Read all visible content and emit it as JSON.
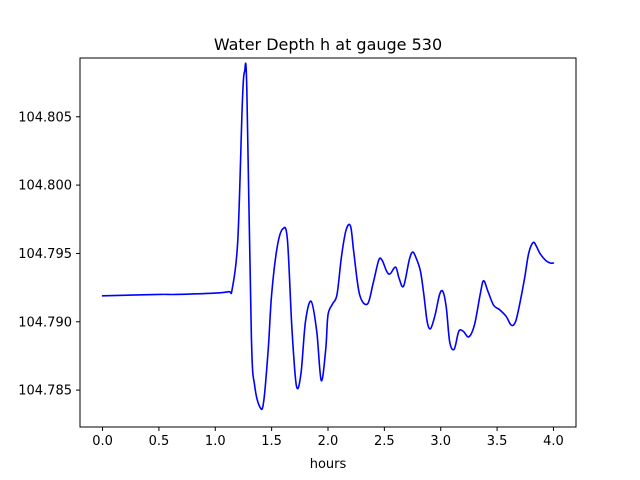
{
  "chart_data": {
    "type": "line",
    "title": "Water Depth h at gauge 530",
    "xlabel": "hours",
    "ylabel": "",
    "xlim": [
      -0.2,
      4.2
    ],
    "ylim": [
      104.7823,
      104.8093
    ],
    "xticks": [
      0.0,
      0.5,
      1.0,
      1.5,
      2.0,
      2.5,
      3.0,
      3.5,
      4.0
    ],
    "xtick_labels": [
      "0.0",
      "0.5",
      "1.0",
      "1.5",
      "2.0",
      "2.5",
      "3.0",
      "3.5",
      "4.0"
    ],
    "yticks": [
      104.785,
      104.79,
      104.795,
      104.8,
      104.805
    ],
    "ytick_labels": [
      "104.785",
      "104.790",
      "104.795",
      "104.800",
      "104.805"
    ],
    "grid": false,
    "legend": "none",
    "series": [
      {
        "color": "#0000ff",
        "x": [
          0.0,
          0.5,
          0.65,
          1.0,
          1.12,
          1.15,
          1.2,
          1.24,
          1.26,
          1.28,
          1.32,
          1.35,
          1.4,
          1.43,
          1.47,
          1.5,
          1.55,
          1.6,
          1.64,
          1.68,
          1.72,
          1.76,
          1.8,
          1.85,
          1.9,
          1.94,
          1.98,
          2.0,
          2.04,
          2.08,
          2.12,
          2.16,
          2.2,
          2.23,
          2.28,
          2.35,
          2.4,
          2.45,
          2.48,
          2.52,
          2.55,
          2.6,
          2.63,
          2.67,
          2.72,
          2.75,
          2.78,
          2.82,
          2.85,
          2.88,
          2.91,
          2.95,
          2.99,
          3.02,
          3.05,
          3.08,
          3.12,
          3.16,
          3.2,
          3.25,
          3.3,
          3.35,
          3.38,
          3.42,
          3.47,
          3.52,
          3.58,
          3.62,
          3.65,
          3.68,
          3.74,
          3.78,
          3.82,
          3.85,
          3.88,
          3.93,
          3.97,
          4.0
        ],
        "values": [
          104.7919,
          104.792,
          104.792,
          104.7921,
          104.7922,
          104.7924,
          104.796,
          104.806,
          104.8083,
          104.807,
          104.789,
          104.7853,
          104.7837,
          104.7842,
          104.788,
          104.792,
          104.7955,
          104.7968,
          104.796,
          104.7895,
          104.7853,
          104.7862,
          104.79,
          104.7915,
          104.7893,
          104.7857,
          104.788,
          104.7905,
          104.7913,
          104.792,
          104.7948,
          104.7967,
          104.797,
          104.795,
          104.792,
          104.7913,
          104.7928,
          104.7945,
          104.7945,
          104.7937,
          104.7935,
          104.794,
          104.7932,
          104.7926,
          104.7945,
          104.7951,
          104.7947,
          104.7937,
          104.792,
          104.79,
          104.7895,
          104.7905,
          104.792,
          104.7922,
          104.791,
          104.7885,
          104.788,
          104.7893,
          104.7893,
          104.7889,
          104.7898,
          104.792,
          104.793,
          104.7922,
          104.7912,
          104.7909,
          104.7904,
          104.7898,
          104.7898,
          104.7905,
          104.793,
          104.795,
          104.7958,
          104.7955,
          104.795,
          104.7945,
          104.7943,
          104.7943
        ]
      }
    ]
  }
}
